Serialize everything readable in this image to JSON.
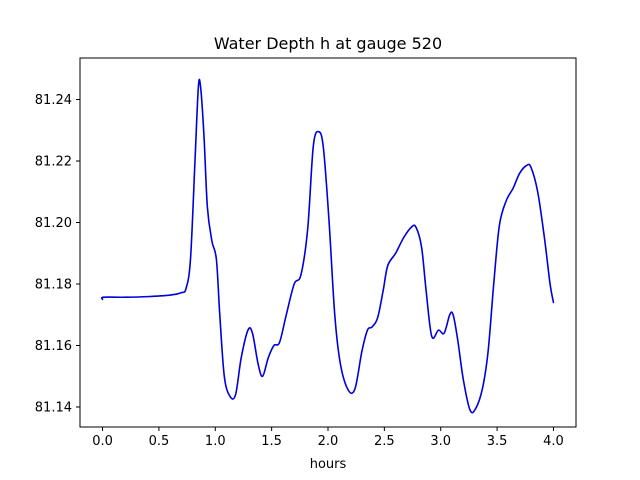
{
  "chart_data": {
    "type": "line",
    "title": "Water Depth h at gauge 520",
    "xlabel": "hours",
    "ylabel": "",
    "xlim": [
      -0.2,
      4.2
    ],
    "ylim": [
      81.1335,
      81.2535
    ],
    "xticks": [
      0.0,
      0.5,
      1.0,
      1.5,
      2.0,
      2.5,
      3.0,
      3.5,
      4.0
    ],
    "xtick_labels": [
      "0.0",
      "0.5",
      "1.0",
      "1.5",
      "2.0",
      "2.5",
      "3.0",
      "3.5",
      "4.0"
    ],
    "yticks": [
      81.14,
      81.16,
      81.18,
      81.2,
      81.22,
      81.24
    ],
    "ytick_labels": [
      "81.14",
      "81.16",
      "81.18",
      "81.20",
      "81.22",
      "81.24"
    ],
    "grid": false,
    "series": [
      {
        "name": "",
        "color": "#0000dd",
        "points": [
          [
            0.0,
            81.175
          ],
          [
            0.01,
            81.1757
          ],
          [
            0.2,
            81.1757
          ],
          [
            0.4,
            81.1759
          ],
          [
            0.6,
            81.1764
          ],
          [
            0.7,
            81.1772
          ],
          [
            0.74,
            81.1785
          ],
          [
            0.78,
            81.188
          ],
          [
            0.82,
            81.22
          ],
          [
            0.85,
            81.244
          ],
          [
            0.87,
            81.244
          ],
          [
            0.9,
            81.228
          ],
          [
            0.93,
            81.205
          ],
          [
            0.97,
            81.194
          ],
          [
            1.01,
            81.188
          ],
          [
            1.04,
            81.17
          ],
          [
            1.08,
            81.15
          ],
          [
            1.13,
            81.1435
          ],
          [
            1.18,
            81.144
          ],
          [
            1.23,
            81.156
          ],
          [
            1.29,
            81.165
          ],
          [
            1.33,
            81.164
          ],
          [
            1.38,
            81.154
          ],
          [
            1.42,
            81.15
          ],
          [
            1.47,
            81.156
          ],
          [
            1.52,
            81.16
          ],
          [
            1.57,
            81.161
          ],
          [
            1.63,
            81.17
          ],
          [
            1.7,
            81.18
          ],
          [
            1.76,
            81.183
          ],
          [
            1.82,
            81.198
          ],
          [
            1.87,
            81.225
          ],
          [
            1.92,
            81.2295
          ],
          [
            1.96,
            81.224
          ],
          [
            2.01,
            81.2
          ],
          [
            2.06,
            81.17
          ],
          [
            2.11,
            81.154
          ],
          [
            2.18,
            81.1455
          ],
          [
            2.24,
            81.146
          ],
          [
            2.3,
            81.158
          ],
          [
            2.35,
            81.165
          ],
          [
            2.39,
            81.166
          ],
          [
            2.44,
            81.169
          ],
          [
            2.49,
            81.178
          ],
          [
            2.53,
            81.186
          ],
          [
            2.6,
            81.19
          ],
          [
            2.67,
            81.195
          ],
          [
            2.74,
            81.1985
          ],
          [
            2.78,
            81.1985
          ],
          [
            2.83,
            81.192
          ],
          [
            2.87,
            81.178
          ],
          [
            2.92,
            81.163
          ],
          [
            2.98,
            81.165
          ],
          [
            3.03,
            81.164
          ],
          [
            3.08,
            81.17
          ],
          [
            3.11,
            81.17
          ],
          [
            3.15,
            81.162
          ],
          [
            3.2,
            81.149
          ],
          [
            3.26,
            81.139
          ],
          [
            3.31,
            81.1395
          ],
          [
            3.37,
            81.146
          ],
          [
            3.42,
            81.158
          ],
          [
            3.47,
            81.18
          ],
          [
            3.52,
            81.199
          ],
          [
            3.58,
            81.207
          ],
          [
            3.64,
            81.211
          ],
          [
            3.7,
            81.216
          ],
          [
            3.76,
            81.2185
          ],
          [
            3.8,
            81.218
          ],
          [
            3.86,
            81.21
          ],
          [
            3.92,
            81.195
          ],
          [
            3.97,
            81.18
          ],
          [
            4.0,
            81.174
          ]
        ]
      }
    ]
  }
}
